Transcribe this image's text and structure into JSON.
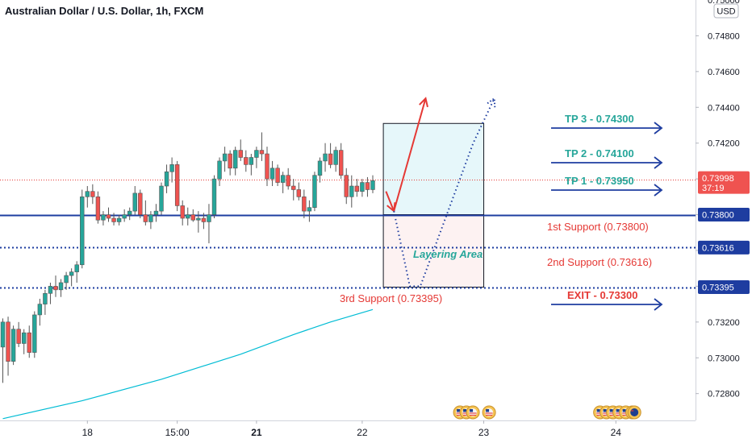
{
  "header": {
    "title": "Australian Dollar / U.S. Dollar, 1h, FXCM",
    "currency": "USD"
  },
  "chart_data": {
    "type": "candlestick",
    "symbol": "AUDUSD",
    "timeframe": "1h",
    "ylim": [
      0.7265,
      0.75
    ],
    "y_ticks": [
      0.748,
      0.746,
      0.744,
      0.742,
      0.74,
      0.738,
      0.736,
      0.734,
      0.732,
      0.73,
      0.728
    ],
    "y_tick_labels": [
      "0.74800",
      "0.74600",
      "0.74400",
      "0.74200",
      "0.74000",
      "0.73800",
      "0.73600",
      "0.73400",
      "0.73200",
      "0.73000",
      "0.72800"
    ],
    "x_ticks": [
      {
        "label": "18",
        "bar": 16
      },
      {
        "label": "15:00",
        "bar": 33
      },
      {
        "label": "21",
        "bar": 48
      },
      {
        "label": "22",
        "bar": 68
      },
      {
        "label": "23",
        "bar": 91
      },
      {
        "label": "24",
        "bar": 116
      }
    ],
    "bar_count_axis": 130,
    "candles": [
      [
        0.7306,
        0.7322,
        0.7286,
        0.732
      ],
      [
        0.732,
        0.7323,
        0.729,
        0.7298
      ],
      [
        0.7298,
        0.7318,
        0.7296,
        0.7316
      ],
      [
        0.7316,
        0.732,
        0.7306,
        0.7308
      ],
      [
        0.7308,
        0.7316,
        0.7302,
        0.7314
      ],
      [
        0.7314,
        0.7318,
        0.73,
        0.7303
      ],
      [
        0.7303,
        0.7326,
        0.73,
        0.7324
      ],
      [
        0.7324,
        0.7333,
        0.7318,
        0.733
      ],
      [
        0.733,
        0.7338,
        0.7324,
        0.7336
      ],
      [
        0.7336,
        0.7342,
        0.733,
        0.734
      ],
      [
        0.734,
        0.7346,
        0.7334,
        0.7338
      ],
      [
        0.7338,
        0.7344,
        0.7334,
        0.7342
      ],
      [
        0.7342,
        0.7348,
        0.7338,
        0.7346
      ],
      [
        0.7346,
        0.735,
        0.734,
        0.7348
      ],
      [
        0.7348,
        0.7354,
        0.7342,
        0.7352
      ],
      [
        0.7352,
        0.7394,
        0.735,
        0.739
      ],
      [
        0.739,
        0.7396,
        0.7384,
        0.7393
      ],
      [
        0.7393,
        0.7397,
        0.7386,
        0.739
      ],
      [
        0.739,
        0.7393,
        0.7375,
        0.7377
      ],
      [
        0.7377,
        0.7382,
        0.7374,
        0.738
      ],
      [
        0.738,
        0.7384,
        0.7376,
        0.7378
      ],
      [
        0.7378,
        0.7381,
        0.7374,
        0.7376
      ],
      [
        0.7376,
        0.738,
        0.7374,
        0.7378
      ],
      [
        0.7378,
        0.7383,
        0.7376,
        0.738
      ],
      [
        0.738,
        0.7384,
        0.7377,
        0.7382
      ],
      [
        0.7382,
        0.7396,
        0.738,
        0.7392
      ],
      [
        0.7392,
        0.7394,
        0.7378,
        0.738
      ],
      [
        0.738,
        0.7388,
        0.7374,
        0.7376
      ],
      [
        0.7376,
        0.7382,
        0.7372,
        0.738
      ],
      [
        0.738,
        0.7386,
        0.7376,
        0.7382
      ],
      [
        0.7382,
        0.7398,
        0.738,
        0.7396
      ],
      [
        0.7396,
        0.7408,
        0.7392,
        0.7404
      ],
      [
        0.7404,
        0.7412,
        0.7398,
        0.7408
      ],
      [
        0.7408,
        0.741,
        0.7382,
        0.7385
      ],
      [
        0.7385,
        0.7388,
        0.7374,
        0.7378
      ],
      [
        0.7378,
        0.7384,
        0.7374,
        0.738
      ],
      [
        0.738,
        0.7383,
        0.7376,
        0.7377
      ],
      [
        0.7377,
        0.7382,
        0.737,
        0.7378
      ],
      [
        0.7378,
        0.7381,
        0.7372,
        0.7376
      ],
      [
        0.7376,
        0.7386,
        0.7364,
        0.738
      ],
      [
        0.738,
        0.7402,
        0.7378,
        0.74
      ],
      [
        0.74,
        0.7412,
        0.7396,
        0.741
      ],
      [
        0.741,
        0.7418,
        0.7404,
        0.7414
      ],
      [
        0.7414,
        0.7416,
        0.7402,
        0.7406
      ],
      [
        0.7406,
        0.7418,
        0.7402,
        0.7416
      ],
      [
        0.7416,
        0.7422,
        0.741,
        0.7412
      ],
      [
        0.7412,
        0.7416,
        0.7404,
        0.7408
      ],
      [
        0.7408,
        0.7414,
        0.7402,
        0.7412
      ],
      [
        0.7412,
        0.7418,
        0.7406,
        0.7416
      ],
      [
        0.7416,
        0.7426,
        0.741,
        0.7414
      ],
      [
        0.7414,
        0.7418,
        0.7396,
        0.74
      ],
      [
        0.74,
        0.741,
        0.7396,
        0.7406
      ],
      [
        0.7406,
        0.7408,
        0.7396,
        0.7398
      ],
      [
        0.7398,
        0.7404,
        0.7392,
        0.7402
      ],
      [
        0.7402,
        0.7406,
        0.7394,
        0.7396
      ],
      [
        0.7396,
        0.74,
        0.7388,
        0.7394
      ],
      [
        0.7394,
        0.7398,
        0.7388,
        0.739
      ],
      [
        0.739,
        0.7394,
        0.7378,
        0.7382
      ],
      [
        0.7382,
        0.7388,
        0.7376,
        0.7384
      ],
      [
        0.7384,
        0.7404,
        0.7382,
        0.7402
      ],
      [
        0.7402,
        0.7412,
        0.7398,
        0.741
      ],
      [
        0.741,
        0.742,
        0.7404,
        0.7414
      ],
      [
        0.7414,
        0.742,
        0.7406,
        0.7408
      ],
      [
        0.7408,
        0.7418,
        0.7404,
        0.7416
      ],
      [
        0.7416,
        0.742,
        0.74,
        0.7402
      ],
      [
        0.7402,
        0.7406,
        0.7386,
        0.739
      ],
      [
        0.739,
        0.7402,
        0.7384,
        0.7396
      ],
      [
        0.7396,
        0.74,
        0.739,
        0.7393
      ],
      [
        0.7393,
        0.74,
        0.739,
        0.7398
      ],
      [
        0.7398,
        0.7401,
        0.739,
        0.7394
      ],
      [
        0.7394,
        0.7402,
        0.7392,
        0.7399
      ]
    ],
    "moving_average": {
      "color": "#00bcd4",
      "points": [
        [
          0,
          0.7266
        ],
        [
          15,
          0.7276
        ],
        [
          30,
          0.7288
        ],
        [
          45,
          0.7302
        ],
        [
          55,
          0.7313
        ],
        [
          62,
          0.732
        ],
        [
          70,
          0.7327
        ]
      ]
    },
    "price_lines": [
      {
        "price": 0.73998,
        "style": "dotted",
        "color": "#e53935",
        "tag": "0.73998",
        "countdown": "37:19"
      },
      {
        "price": 0.738,
        "style": "solid",
        "color": "#1e3da0",
        "tag": "0.73800"
      },
      {
        "price": 0.73616,
        "style": "dashed",
        "color": "#1e3da0",
        "tag": "0.73616"
      },
      {
        "price": 0.73395,
        "style": "dashed",
        "color": "#1e3da0",
        "tag": "0.73395"
      }
    ],
    "zones": [
      {
        "name": "target-zone",
        "bar_from": 72,
        "bar_to": 91,
        "from": 0.738,
        "to": 0.7431,
        "fill": "#e6f7fa"
      },
      {
        "name": "layering-zone",
        "bar_from": 72,
        "bar_to": 91,
        "from": 0.73395,
        "to": 0.738,
        "fill": "#fdf2f2"
      }
    ],
    "scenarios": [
      {
        "name": "up-arrow",
        "color": "#e53935",
        "style": "solid",
        "points": [
          [
            74,
            0.7382
          ],
          [
            80,
            0.7445
          ]
        ]
      },
      {
        "name": "down-arrow",
        "color": "#e53935",
        "style": "solid",
        "points": [
          [
            72.5,
            0.7393
          ],
          [
            74,
            0.7382
          ]
        ]
      },
      {
        "name": "dotted-path",
        "color": "#1e3da0",
        "style": "dotted",
        "points": [
          [
            74,
            0.7382
          ],
          [
            77,
            0.734
          ],
          [
            79,
            0.734
          ],
          [
            89,
            0.742
          ],
          [
            93,
            0.7445
          ]
        ]
      }
    ],
    "annotations": {
      "tp3": "TP 3 - 0.74300",
      "tp2": "TP 2 - 0.74100",
      "tp1": "TP 1 - 0.73950",
      "support1": "1st Support (0.73800)",
      "support2": "2nd Support (0.73616)",
      "support3": "3rd Support (0.73395)",
      "exit": "EXIT - 0.73300",
      "layering": "Layering Area"
    },
    "event_markers": [
      {
        "bar": 86.5,
        "flags": [
          "us",
          "us",
          "us"
        ]
      },
      {
        "bar": 92,
        "flags": [
          "us"
        ]
      },
      {
        "bar": 113,
        "flags": [
          "us",
          "us",
          "us",
          "us",
          "us",
          "us"
        ]
      },
      {
        "bar": 119.5,
        "flags": [
          "au"
        ]
      }
    ]
  },
  "colors": {
    "up": "#26a69a",
    "down": "#ef5350",
    "wick": "#555555",
    "axis_text": "#131722",
    "level_blue": "#1e3da0",
    "tag_blue": "#1e3da0",
    "tag_red": "#ef5350"
  }
}
